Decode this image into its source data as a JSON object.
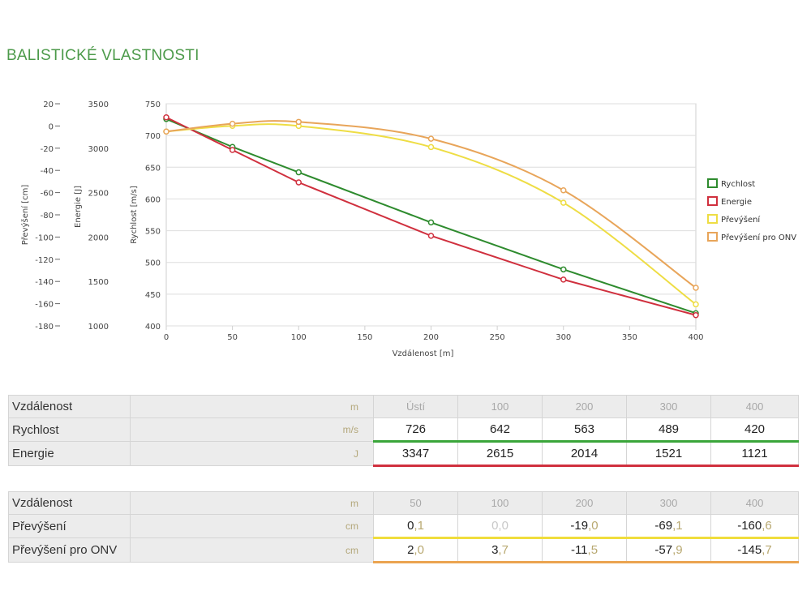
{
  "page_title": "BALISTICKÉ VLASTNOSTI",
  "chart_data": {
    "type": "line",
    "xlabel": "Vzdálenost [m]",
    "xlim": [
      0,
      400
    ],
    "x_ticks": [
      0,
      50,
      100,
      150,
      200,
      250,
      300,
      350,
      400
    ],
    "grid": true,
    "legend_position": "right",
    "axes": {
      "primary": {
        "label": "Rychlost [m/s]",
        "lim": [
          400,
          750
        ],
        "ticks": [
          400,
          450,
          500,
          550,
          600,
          650,
          700,
          750
        ]
      },
      "energy": {
        "label": "Energie [J]",
        "lim": [
          1000,
          3500
        ],
        "ticks": [
          1000,
          1500,
          2000,
          2500,
          3000,
          3500
        ]
      },
      "drop": {
        "label": "Převýšení [cm]",
        "lim": [
          -180,
          20
        ],
        "ticks": [
          -180,
          -160,
          -140,
          -120,
          -100,
          -80,
          -60,
          -40,
          -20,
          0,
          20
        ]
      }
    },
    "series": [
      {
        "name": "Rychlost",
        "axis": "primary",
        "color": "#2e8b2e",
        "smooth": false,
        "x": [
          0,
          50,
          100,
          200,
          300,
          400
        ],
        "values": [
          726,
          682,
          642,
          563,
          489,
          420
        ]
      },
      {
        "name": "Energie",
        "axis": "energy",
        "color": "#d0303e",
        "smooth": false,
        "x": [
          0,
          50,
          100,
          200,
          300,
          400
        ],
        "values": [
          3347,
          2980,
          2615,
          2014,
          1521,
          1121
        ]
      },
      {
        "name": "Převýšení",
        "axis": "drop",
        "color": "#eedd44",
        "smooth": true,
        "x": [
          0,
          50,
          100,
          200,
          300,
          400
        ],
        "values": [
          -5.0,
          0.1,
          0.0,
          -19.0,
          -69.1,
          -160.6
        ]
      },
      {
        "name": "Převýšení pro ONV",
        "axis": "drop",
        "color": "#e8a55a",
        "smooth": true,
        "x": [
          0,
          50,
          100,
          200,
          300,
          400
        ],
        "values": [
          -5.0,
          2.0,
          3.7,
          -11.5,
          -57.9,
          -145.7
        ]
      }
    ]
  },
  "table1": {
    "header": {
      "label": "Vzdálenost",
      "unit": "m",
      "cols": [
        "Ústí",
        "100",
        "200",
        "300",
        "400"
      ]
    },
    "rows": [
      {
        "label": "Rychlost",
        "unit": "m/s",
        "underline": "green",
        "values": [
          "726",
          "642",
          "563",
          "489",
          "420"
        ]
      },
      {
        "label": "Energie",
        "unit": "J",
        "underline": "red",
        "values": [
          "3347",
          "2615",
          "2014",
          "1521",
          "1121"
        ]
      }
    ]
  },
  "table2": {
    "header": {
      "label": "Vzdálenost",
      "unit": "m",
      "cols": [
        "50",
        "100",
        "200",
        "300",
        "400"
      ]
    },
    "rows": [
      {
        "label": "Převýšení",
        "unit": "cm",
        "underline": "yellow",
        "values": [
          {
            "int": "0",
            "frac": ",1",
            "dim": false
          },
          {
            "int": "0",
            "frac": ",0",
            "dim": true
          },
          {
            "int": "-19",
            "frac": ",0",
            "dim": false
          },
          {
            "int": "-69",
            "frac": ",1",
            "dim": false
          },
          {
            "int": "-160",
            "frac": ",6",
            "dim": false
          }
        ]
      },
      {
        "label": "Převýšení pro ONV",
        "unit": "cm",
        "underline": "orange",
        "values": [
          {
            "int": "2",
            "frac": ",0",
            "dim": false
          },
          {
            "int": "3",
            "frac": ",7",
            "dim": false
          },
          {
            "int": "-11",
            "frac": ",5",
            "dim": false
          },
          {
            "int": "-57",
            "frac": ",9",
            "dim": false
          },
          {
            "int": "-145",
            "frac": ",7",
            "dim": false
          }
        ]
      }
    ]
  }
}
